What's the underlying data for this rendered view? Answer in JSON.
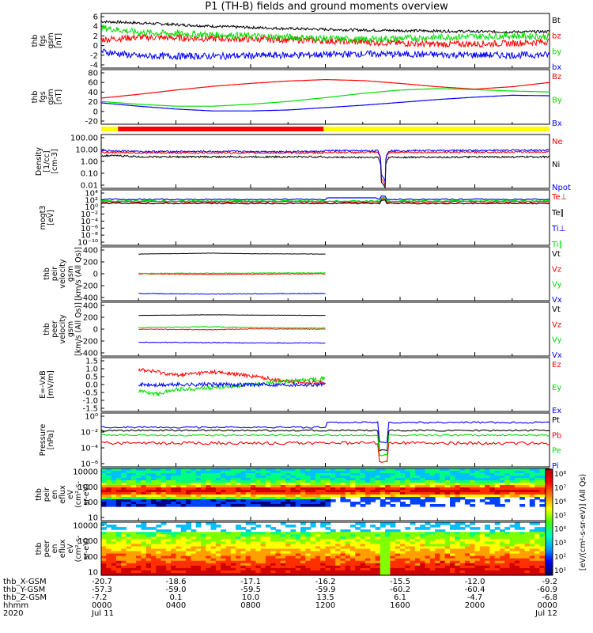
{
  "title": "P1 (TH-B) fields and ground moments overview",
  "colors": {
    "black": "#000000",
    "red": "#ff0000",
    "green": "#00dd00",
    "blue": "#0000ff",
    "yellow": "#ffff00",
    "bar_red": "#ff0000"
  },
  "chart_data": [
    {
      "id": "fgs",
      "type": "line",
      "ylabel": [
        "thb",
        "fgs",
        "gsm",
        "[nT]"
      ],
      "yticks": [
        "6",
        "4",
        "2",
        "0",
        "-2",
        "-4"
      ],
      "ylim": [
        -5,
        6.5
      ],
      "series": [
        {
          "name": "Bt",
          "color": "#000000",
          "x": [
            0,
            2,
            6,
            10,
            14,
            18,
            22,
            24
          ],
          "y": [
            4.8,
            4.5,
            3.8,
            3.3,
            3.0,
            2.8,
            2.6,
            2.7
          ]
        },
        {
          "name": "bz",
          "color": "#ff0000",
          "x": [
            0,
            2,
            6,
            10,
            14,
            18,
            22,
            24
          ],
          "y": [
            1,
            1.5,
            1.2,
            1,
            0.5,
            0,
            0.2,
            0.6
          ]
        },
        {
          "name": "by",
          "color": "#00dd00",
          "x": [
            0,
            2,
            6,
            10,
            14,
            18,
            22,
            24
          ],
          "y": [
            3.5,
            2.5,
            2,
            1.5,
            1,
            1.5,
            1.8,
            1.6
          ]
        },
        {
          "name": "bx",
          "color": "#0000ff",
          "x": [
            0,
            2,
            6,
            10,
            14,
            18,
            22,
            24
          ],
          "y": [
            -1.5,
            -2.5,
            -2.5,
            -2.3,
            -2,
            -2.2,
            -2.3,
            -2.2
          ]
        }
      ]
    },
    {
      "id": "fgs2",
      "type": "line",
      "ylabel": [
        "thb",
        "fgs",
        "gsm",
        "[nT]"
      ],
      "yticks": [
        "80",
        "60",
        "40",
        "20",
        "0",
        "-20"
      ],
      "ylim": [
        -30,
        85
      ],
      "series": [
        {
          "name": "Bz",
          "color": "#ff0000",
          "x": [
            0,
            2,
            4,
            6,
            8,
            10,
            12,
            14,
            16,
            18,
            20,
            22,
            24
          ],
          "y": [
            25,
            33,
            42,
            50,
            56,
            61,
            64,
            62,
            56,
            49,
            44,
            49,
            58
          ]
        },
        {
          "name": "By",
          "color": "#00dd00",
          "x": [
            0,
            2,
            4,
            6,
            8,
            10,
            12,
            14,
            16,
            18,
            20,
            22,
            24
          ],
          "y": [
            18,
            12,
            8,
            8,
            12,
            18,
            26,
            35,
            42,
            45,
            43,
            40,
            38
          ]
        },
        {
          "name": "Bx",
          "color": "#0000ff",
          "x": [
            0,
            2,
            4,
            6,
            8,
            10,
            12,
            14,
            16,
            18,
            20,
            22,
            24
          ],
          "y": [
            15,
            8,
            2,
            -2,
            -2,
            0,
            5,
            10,
            16,
            22,
            27,
            31,
            30
          ]
        }
      ]
    },
    {
      "id": "density",
      "type": "line",
      "yscale": "log",
      "ylabel": [
        "Density",
        "[1/cc]",
        "[cm-3]"
      ],
      "yticks": [
        "100.00",
        "10.00",
        "1.00",
        "0.10",
        "0.01"
      ],
      "ylim": [
        0.003,
        200
      ],
      "series": [
        {
          "name": "Ne",
          "color": "#ff0000",
          "x": [
            0,
            1,
            2,
            11.9,
            12,
            14.8,
            15.0,
            15.2,
            15.4,
            24
          ],
          "y": [
            5,
            5,
            4.5,
            4.5,
            5,
            5,
            0.02,
            0.005,
            5,
            5.5
          ]
        },
        {
          "name": "Ni",
          "color": "#000000",
          "x": [
            0,
            1,
            2,
            11.9,
            12,
            14.8,
            15.0,
            15.2,
            15.4,
            24
          ],
          "y": [
            2.5,
            2.5,
            2,
            2,
            1.8,
            1.8,
            0.01,
            0.003,
            1.8,
            2
          ]
        },
        {
          "name": "Npot",
          "color": "#0000ff",
          "x": [
            0,
            1,
            2,
            11.9,
            12,
            14.8,
            15.0,
            15.2,
            15.4,
            24
          ],
          "y": [
            7,
            7,
            6,
            6,
            7,
            7,
            0.05,
            0.01,
            7,
            8
          ]
        }
      ]
    },
    {
      "id": "temp",
      "type": "line",
      "yscale": "log",
      "ylabel": [
        "mogt3",
        "[eV]"
      ],
      "yticks": [
        "10⁴",
        "10²",
        "10⁰",
        "10⁻²",
        "10⁻⁴",
        "10⁻⁶",
        "10⁻⁸",
        "10⁻¹⁰"
      ],
      "series": [
        {
          "name": "Te⊥",
          "color": "#ff0000"
        },
        {
          "name": "Te∥",
          "color": "#000000"
        },
        {
          "name": "Ti⊥",
          "color": "#0000ff"
        },
        {
          "name": "Ti∥",
          "color": "#00dd00"
        }
      ]
    },
    {
      "id": "peirvel",
      "type": "line",
      "ylabel": [
        "thb",
        "peir",
        "velocity",
        "gsm",
        "[km/s (All Qs)]"
      ],
      "yticks": [
        "400",
        "200",
        "0",
        "-200",
        "-400"
      ],
      "ylim": [
        -450,
        450
      ],
      "series": [
        {
          "name": "Vt",
          "color": "#000000",
          "x": [
            2,
            6,
            8,
            12
          ],
          "y": [
            330,
            345,
            335,
            330
          ]
        },
        {
          "name": "Vz",
          "color": "#ff0000",
          "x": [
            2,
            6,
            8,
            12
          ],
          "y": [
            0,
            -10,
            -5,
            0
          ]
        },
        {
          "name": "Vy",
          "color": "#00dd00",
          "x": [
            2,
            6,
            8,
            12
          ],
          "y": [
            5,
            10,
            10,
            15
          ]
        },
        {
          "name": "Vx",
          "color": "#0000ff",
          "x": [
            2,
            6,
            8,
            12
          ],
          "y": [
            -330,
            -340,
            -335,
            -330
          ]
        }
      ]
    },
    {
      "id": "peervel",
      "type": "line",
      "ylabel": [
        "thb",
        "peer",
        "velocity",
        "gsm",
        "[km/s (All Qs)]"
      ],
      "yticks": [
        "400",
        "200",
        "0",
        "-200",
        "-400"
      ],
      "ylim": [
        -450,
        450
      ],
      "series": [
        {
          "name": "Vt",
          "color": "#000000",
          "x": [
            2,
            6,
            8,
            12
          ],
          "y": [
            230,
            240,
            235,
            230
          ]
        },
        {
          "name": "Vz",
          "color": "#ff0000",
          "x": [
            2,
            6,
            8,
            12
          ],
          "y": [
            0,
            -10,
            5,
            0
          ]
        },
        {
          "name": "Vy",
          "color": "#00dd00",
          "x": [
            2,
            6,
            8,
            12
          ],
          "y": [
            30,
            40,
            30,
            20
          ]
        },
        {
          "name": "Vx",
          "color": "#0000ff",
          "x": [
            2,
            6,
            8,
            12
          ],
          "y": [
            -220,
            -225,
            -230,
            -230
          ]
        }
      ]
    },
    {
      "id": "efield",
      "type": "line",
      "ylabel": [
        "E=-VxB",
        "[mV/m]"
      ],
      "yticks": [
        "1.5",
        "1.0",
        "0.5",
        "0.0",
        "-0.5",
        "-1.0",
        "-1.5"
      ],
      "ylim": [
        -1.7,
        1.7
      ],
      "series": [
        {
          "name": "Ez",
          "color": "#ff0000",
          "x": [
            2,
            3,
            4,
            6,
            8,
            10,
            12
          ],
          "y": [
            0.95,
            0.8,
            0.6,
            0.8,
            0.55,
            0.2,
            0.1
          ]
        },
        {
          "name": "Ey",
          "color": "#00dd00",
          "x": [
            2,
            3,
            4,
            6,
            8,
            10,
            12
          ],
          "y": [
            -0.4,
            -0.6,
            -0.3,
            -0.2,
            0.0,
            0.2,
            0.4
          ]
        },
        {
          "name": "Ex",
          "color": "#0000ff",
          "x": [
            2,
            3,
            4,
            6,
            8,
            10,
            12
          ],
          "y": [
            0,
            -0.05,
            0,
            0,
            0,
            0,
            0
          ]
        }
      ]
    },
    {
      "id": "pressure",
      "type": "line",
      "yscale": "log",
      "ylabel": [
        "Pressure",
        "[nPa]"
      ],
      "yticks": [
        "10⁰",
        "10⁻²",
        "10⁻⁴",
        "10⁻⁶"
      ],
      "series": [
        {
          "name": "Pt",
          "color": "#000000"
        },
        {
          "name": "Pb",
          "color": "#ff0000"
        },
        {
          "name": "Pe",
          "color": "#00dd00"
        },
        {
          "name": "Pi",
          "color": "#0000ff"
        }
      ]
    },
    {
      "id": "peirspec",
      "type": "heatmap",
      "ylabel": [
        "thb",
        "peir",
        "en",
        "eflux",
        "eV",
        "(cm²-s-",
        "sr-eV)"
      ],
      "yticks": [
        "10000",
        "1000",
        "100",
        "10"
      ]
    },
    {
      "id": "peerspec",
      "type": "heatmap",
      "ylabel": [
        "thb",
        "peer",
        "en",
        "eflux",
        "eV",
        "(cm²-s-",
        "sr-eV)"
      ],
      "yticks": [
        "10000",
        "1000",
        "100",
        "10"
      ]
    }
  ],
  "status_bar_label": "",
  "colorbar": {
    "ticks": [
      "10⁸",
      "10⁷",
      "10⁶",
      "10⁵",
      "10⁴",
      "10³",
      "10²",
      "10¹"
    ],
    "label": "[eV/(cm²-s-sr-eV)] (All Qs)"
  },
  "xaxis": {
    "row_labels": [
      "thb_X-GSM",
      "thb_Y-GSM",
      "thb_Z-GSM",
      "hhmm",
      "2020"
    ],
    "columns": [
      {
        "x": "-20.7",
        "y": "-57.3",
        "z": "-7.2",
        "t": "0000",
        "d": "Jul 11"
      },
      {
        "x": "-18.6",
        "y": "-59.0",
        "z": "0.1",
        "t": "0400",
        "d": ""
      },
      {
        "x": "-17.1",
        "y": "-59.5",
        "z": "10.0",
        "t": "0800",
        "d": ""
      },
      {
        "x": "-16.2",
        "y": "-59.9",
        "z": "13.5",
        "t": "1200",
        "d": ""
      },
      {
        "x": "-15.5",
        "y": "-60.2",
        "z": "6.1",
        "t": "1600",
        "d": ""
      },
      {
        "x": "-12.0",
        "y": "-60.4",
        "z": "-4.7",
        "t": "2000",
        "d": ""
      },
      {
        "x": "-9.2",
        "y": "-60.9",
        "z": "-6.8",
        "t": "0000",
        "d": "Jul 12"
      }
    ]
  }
}
